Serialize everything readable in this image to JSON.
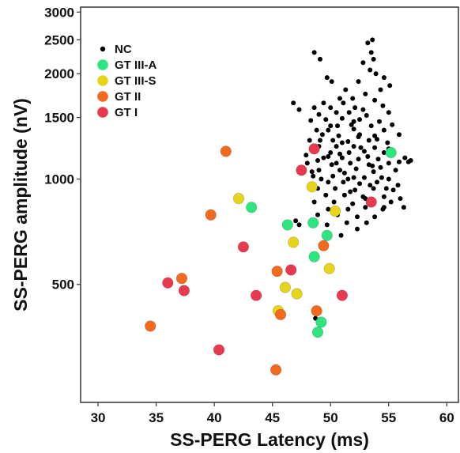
{
  "chart_data": {
    "type": "scatter",
    "title": "",
    "xlabel": "SS-PERG Latency (ms)",
    "ylabel": "SS-PERG amplitude (nV)",
    "xlim": [
      28.5,
      61
    ],
    "ylim": [
      230,
      3100
    ],
    "yscale": "log",
    "xticks": [
      30,
      35,
      40,
      45,
      50,
      55,
      60
    ],
    "yticks": [
      500,
      1000,
      1500,
      2000,
      2500,
      3000
    ],
    "legend_position": "top-left",
    "grid": false,
    "series": [
      {
        "name": "NC",
        "color": "#000000",
        "marker": "small",
        "points": [
          [
            48.6,
            2300
          ],
          [
            49.1,
            2200
          ],
          [
            53.2,
            2450
          ],
          [
            53.6,
            2500
          ],
          [
            53.5,
            2300
          ],
          [
            53.7,
            2200
          ],
          [
            52.8,
            2150
          ],
          [
            53.4,
            2050
          ],
          [
            53.9,
            2000
          ],
          [
            52.4,
            1900
          ],
          [
            54.6,
            1950
          ],
          [
            49.7,
            1950
          ],
          [
            50.1,
            1900
          ],
          [
            54.3,
            1800
          ],
          [
            55.1,
            1850
          ],
          [
            51.3,
            1800
          ],
          [
            53.0,
            1750
          ],
          [
            50.8,
            1700
          ],
          [
            46.8,
            1650
          ],
          [
            49.4,
            1650
          ],
          [
            51.1,
            1650
          ],
          [
            51.9,
            1700
          ],
          [
            53.8,
            1680
          ],
          [
            47.3,
            1580
          ],
          [
            48.6,
            1600
          ],
          [
            50.0,
            1600
          ],
          [
            52.1,
            1600
          ],
          [
            52.8,
            1580
          ],
          [
            54.5,
            1620
          ],
          [
            49.0,
            1530
          ],
          [
            50.5,
            1550
          ],
          [
            51.6,
            1550
          ],
          [
            53.1,
            1520
          ],
          [
            55.0,
            1550
          ],
          [
            48.3,
            1470
          ],
          [
            49.6,
            1480
          ],
          [
            51.0,
            1490
          ],
          [
            52.5,
            1480
          ],
          [
            54.2,
            1460
          ],
          [
            50.0,
            1420
          ],
          [
            51.8,
            1430
          ],
          [
            53.5,
            1420
          ],
          [
            55.3,
            1430
          ],
          [
            48.8,
            1380
          ],
          [
            49.8,
            1380
          ],
          [
            52.0,
            1390
          ],
          [
            54.6,
            1380
          ],
          [
            49.3,
            1340
          ],
          [
            50.7,
            1330
          ],
          [
            52.4,
            1320
          ],
          [
            53.8,
            1330
          ],
          [
            55.9,
            1340
          ],
          [
            48.2,
            1290
          ],
          [
            50.2,
            1290
          ],
          [
            51.5,
            1280
          ],
          [
            53.3,
            1290
          ],
          [
            54.9,
            1270
          ],
          [
            49.0,
            1240
          ],
          [
            50.5,
            1240
          ],
          [
            52.0,
            1240
          ],
          [
            53.8,
            1230
          ],
          [
            48.5,
            1200
          ],
          [
            50.0,
            1190
          ],
          [
            51.6,
            1190
          ],
          [
            52.9,
            1200
          ],
          [
            54.6,
            1190
          ],
          [
            56.4,
            1150
          ],
          [
            49.4,
            1150
          ],
          [
            51.0,
            1150
          ],
          [
            52.4,
            1140
          ],
          [
            54.1,
            1140
          ],
          [
            55.9,
            1120
          ],
          [
            48.0,
            1110
          ],
          [
            50.1,
            1100
          ],
          [
            51.7,
            1110
          ],
          [
            53.3,
            1100
          ],
          [
            55.0,
            1110
          ],
          [
            56.7,
            1120
          ],
          [
            49.0,
            1060
          ],
          [
            50.8,
            1060
          ],
          [
            52.2,
            1070
          ],
          [
            53.7,
            1050
          ],
          [
            55.6,
            1060
          ],
          [
            48.5,
            1020
          ],
          [
            50.2,
            1020
          ],
          [
            51.5,
            1000
          ],
          [
            52.9,
            1010
          ],
          [
            54.4,
            1010
          ],
          [
            49.8,
            980
          ],
          [
            51.1,
            980
          ],
          [
            52.5,
            970
          ],
          [
            54.0,
            980
          ],
          [
            55.8,
            960
          ],
          [
            48.9,
            940
          ],
          [
            50.4,
            940
          ],
          [
            52.1,
            930
          ],
          [
            53.7,
            940
          ],
          [
            55.4,
            930
          ],
          [
            49.6,
            900
          ],
          [
            51.2,
            900
          ],
          [
            52.8,
            890
          ],
          [
            54.6,
            890
          ],
          [
            56.0,
            880
          ],
          [
            48.6,
            860
          ],
          [
            50.3,
            860
          ],
          [
            51.9,
            850
          ],
          [
            53.5,
            860
          ],
          [
            55.2,
            860
          ],
          [
            49.8,
            820
          ],
          [
            51.5,
            820
          ],
          [
            53.0,
            830
          ],
          [
            54.6,
            830
          ],
          [
            56.3,
            830
          ],
          [
            48.9,
            790
          ],
          [
            50.6,
            790
          ],
          [
            52.3,
            780
          ],
          [
            53.8,
            780
          ],
          [
            51.4,
            750
          ],
          [
            53.1,
            750
          ],
          [
            49.7,
            740
          ],
          [
            47.3,
            740
          ],
          [
            50.9,
            690
          ],
          [
            52.3,
            720
          ],
          [
            54.5,
            820
          ],
          [
            47.0,
            760
          ],
          [
            55.0,
            1000
          ],
          [
            52.6,
            1230
          ],
          [
            51.0,
            1270
          ],
          [
            49.8,
            1160
          ],
          [
            50.6,
            1420
          ],
          [
            52.0,
            1010
          ],
          [
            53.2,
            1160
          ],
          [
            54.0,
            1300
          ],
          [
            48.4,
            1050
          ],
          [
            47.9,
            1170
          ],
          [
            53.0,
            880
          ],
          [
            51.7,
            920
          ],
          [
            49.2,
            1000
          ],
          [
            55.0,
            1220
          ],
          [
            50.5,
            1110
          ],
          [
            52.5,
            1340
          ],
          [
            53.6,
            1090
          ],
          [
            51.2,
            1040
          ],
          [
            48.9,
            1130
          ],
          [
            54.3,
            1080
          ],
          [
            56.9,
            1130
          ],
          [
            52.0,
            1460
          ],
          [
            50.8,
            1180
          ],
          [
            49.1,
            1290
          ],
          [
            53.4,
            960
          ],
          [
            54.8,
            940
          ],
          [
            48.7,
            400
          ],
          [
            49.3,
            395
          ]
        ]
      },
      {
        "name": "GT III-A",
        "color": "#2EE57F",
        "marker": "large",
        "points": [
          [
            55.2,
            1190
          ],
          [
            43.2,
            830
          ],
          [
            46.3,
            740
          ],
          [
            48.5,
            750
          ],
          [
            49.7,
            690
          ],
          [
            48.6,
            600
          ],
          [
            49.2,
            390
          ],
          [
            48.9,
            365
          ]
        ]
      },
      {
        "name": "GT III-S",
        "color": "#E6D51A",
        "marker": "large",
        "points": [
          [
            42.1,
            880
          ],
          [
            48.4,
            950
          ],
          [
            50.4,
            810
          ],
          [
            46.8,
            660
          ],
          [
            49.9,
            555
          ],
          [
            46.1,
            490
          ],
          [
            47.1,
            470
          ],
          [
            45.5,
            420
          ]
        ]
      },
      {
        "name": "GT II",
        "color": "#F26A1E",
        "marker": "large",
        "points": [
          [
            41.0,
            1200
          ],
          [
            39.7,
            790
          ],
          [
            37.2,
            520
          ],
          [
            45.4,
            545
          ],
          [
            49.4,
            645
          ],
          [
            48.8,
            420
          ],
          [
            45.7,
            410
          ],
          [
            34.5,
            380
          ],
          [
            45.3,
            285
          ]
        ]
      },
      {
        "name": "GT I",
        "color": "#E83A4E",
        "marker": "large",
        "points": [
          [
            48.6,
            1220
          ],
          [
            47.5,
            1060
          ],
          [
            53.5,
            860
          ],
          [
            42.5,
            640
          ],
          [
            46.6,
            550
          ],
          [
            36.0,
            505
          ],
          [
            37.4,
            480
          ],
          [
            43.6,
            465
          ],
          [
            51.0,
            465
          ],
          [
            40.4,
            325
          ]
        ]
      }
    ]
  }
}
